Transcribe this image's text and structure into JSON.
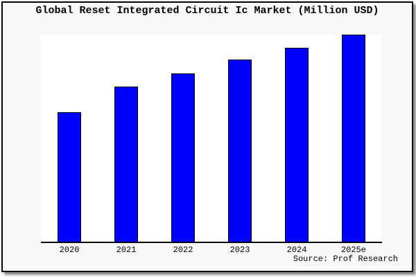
{
  "window": {
    "title": "Global Reset Integrated Circuit Ic Market (Million USD)",
    "source_label": "Source: Prof Research"
  },
  "chart_data": {
    "type": "bar",
    "title": "Global Reset Integrated Circuit Ic Market (Million USD)",
    "categories": [
      "2020",
      "2021",
      "2022",
      "2023",
      "2024",
      "2025e"
    ],
    "values": [
      62.7,
      75.0,
      81.4,
      87.8,
      93.8,
      100
    ],
    "values_unit": "percent of tallest bar (no numeric y-axis shown in chart)",
    "xlabel": "",
    "ylabel": "",
    "ylim": [
      0,
      100
    ],
    "grid": false,
    "legend": false,
    "y_axis_visible": false,
    "source_label": "Source: Prof Research",
    "colors": {
      "bar_fill": "#0000ff",
      "bar_border": "#000000",
      "plot_background": "#ffffff",
      "chart_background": "#f8f8f8",
      "frame_border": "#000000",
      "text": "#000000"
    }
  }
}
